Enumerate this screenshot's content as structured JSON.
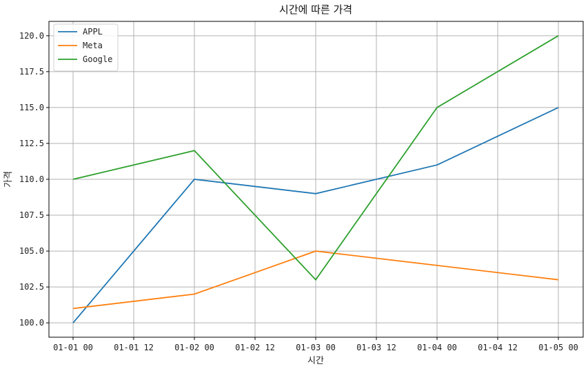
{
  "chart_data": {
    "type": "line",
    "title": "시간에 따른 가격",
    "xlabel": "시간",
    "ylabel": "가격",
    "x": [
      "2024-01-01 00:00",
      "2024-01-02 00:00",
      "2024-01-03 00:00",
      "2024-01-04 00:00",
      "2024-01-05 00:00"
    ],
    "x_tick_labels": [
      "01-01 00",
      "01-01 12",
      "01-02 00",
      "01-02 12",
      "01-03 00",
      "01-03 12",
      "01-04 00",
      "01-04 12",
      "01-05 00"
    ],
    "y_tick_labels": [
      "100.0",
      "102.5",
      "105.0",
      "107.5",
      "110.0",
      "112.5",
      "115.0",
      "117.5",
      "120.0"
    ],
    "ylim": [
      99,
      121
    ],
    "grid": true,
    "legend_position": "top-left",
    "series": [
      {
        "name": "APPL",
        "color": "#1f77b4",
        "values": [
          100,
          110,
          109,
          111,
          115
        ]
      },
      {
        "name": "Meta",
        "color": "#ff7f0e",
        "values": [
          101,
          102,
          105,
          104,
          103
        ]
      },
      {
        "name": "Google",
        "color": "#2ca02c",
        "values": [
          110,
          112,
          103,
          115,
          120
        ]
      }
    ]
  }
}
